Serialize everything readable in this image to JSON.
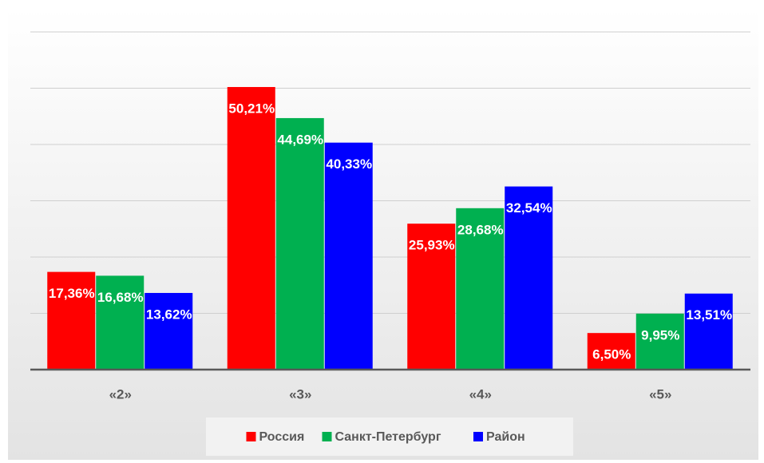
{
  "chart_data": {
    "type": "bar",
    "categories": [
      "«2»",
      "«3»",
      "«4»",
      "«5»"
    ],
    "series": [
      {
        "name": "Россия",
        "color": "#ff0000",
        "values": [
          17.36,
          50.21,
          25.93,
          6.5
        ],
        "value_labels": [
          "17,36%",
          "50,21%",
          "25,93%",
          "6,50%"
        ]
      },
      {
        "name": "Санкт-Петербург",
        "color": "#00b050",
        "values": [
          16.68,
          44.69,
          28.68,
          9.95
        ],
        "value_labels": [
          "16,68%",
          "44,69%",
          "28,68%",
          "9,95%"
        ]
      },
      {
        "name": "Район",
        "color": "#0000ff",
        "values": [
          13.62,
          40.33,
          32.54,
          13.51
        ],
        "value_labels": [
          "13,62%",
          "40,33%",
          "32,54%",
          "13,51%"
        ]
      }
    ],
    "ylim": [
      0,
      60
    ],
    "yticks": [
      0,
      10,
      20,
      30,
      40,
      50,
      60
    ],
    "grid": true,
    "legend": "bottom"
  }
}
